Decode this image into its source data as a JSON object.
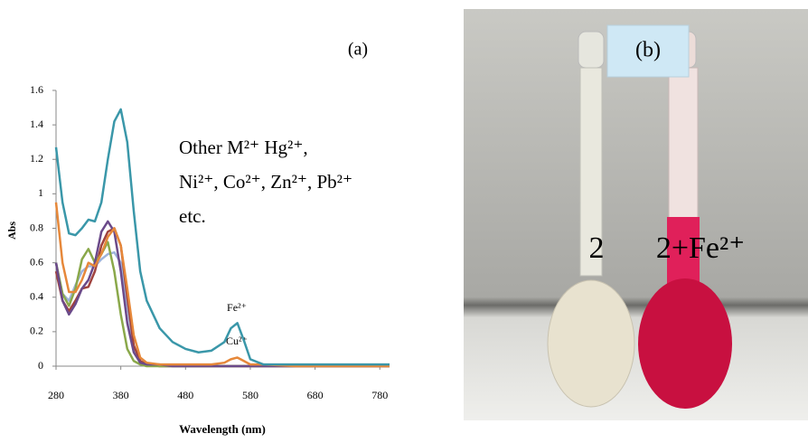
{
  "chart_data": {
    "type": "line",
    "panel_label": "(a)",
    "x_label": "Wavelength (nm)",
    "y_label": "Abs",
    "annotation_lines": [
      "Other M²⁺  Hg²⁺,",
      "Ni²⁺, Co²⁺, Zn²⁺, Pb²⁺",
      "etc."
    ],
    "peak_labels": [
      "Fe²⁺",
      "Cu²⁺"
    ],
    "x": [
      280,
      290,
      300,
      310,
      320,
      330,
      340,
      350,
      360,
      370,
      380,
      390,
      400,
      410,
      420,
      440,
      460,
      480,
      500,
      520,
      540,
      550,
      560,
      570,
      580,
      600,
      650,
      700,
      750,
      795
    ],
    "series": [
      {
        "color": "#3a97a9",
        "values": [
          1.27,
          0.95,
          0.77,
          0.76,
          0.8,
          0.85,
          0.84,
          0.95,
          1.2,
          1.42,
          1.49,
          1.3,
          0.9,
          0.55,
          0.38,
          0.22,
          0.14,
          0.1,
          0.08,
          0.09,
          0.14,
          0.22,
          0.25,
          0.15,
          0.04,
          0.01,
          0.01,
          0.01,
          0.01,
          0.01
        ]
      },
      {
        "color": "#e6883a",
        "values": [
          0.95,
          0.6,
          0.43,
          0.43,
          0.5,
          0.6,
          0.58,
          0.65,
          0.75,
          0.8,
          0.7,
          0.45,
          0.18,
          0.05,
          0.02,
          0.01,
          0.01,
          0.01,
          0.01,
          0.01,
          0.02,
          0.04,
          0.05,
          0.03,
          0.01,
          0.01,
          0,
          0,
          0,
          0
        ]
      },
      {
        "color": "#6b4a8a",
        "values": [
          0.6,
          0.38,
          0.3,
          0.36,
          0.45,
          0.5,
          0.6,
          0.78,
          0.84,
          0.78,
          0.55,
          0.25,
          0.08,
          0.02,
          0.01,
          0.01,
          0,
          0,
          0,
          0,
          0,
          0,
          0,
          0,
          0,
          0,
          0,
          0,
          0,
          0
        ]
      },
      {
        "color": "#8aa84a",
        "values": [
          0.6,
          0.42,
          0.35,
          0.45,
          0.62,
          0.68,
          0.6,
          0.65,
          0.72,
          0.55,
          0.3,
          0.1,
          0.03,
          0.01,
          0,
          0,
          0,
          0,
          0,
          0,
          0,
          0,
          0,
          0,
          0,
          0,
          0,
          0,
          0,
          0
        ]
      },
      {
        "color": "#a0433f",
        "values": [
          0.55,
          0.38,
          0.32,
          0.38,
          0.45,
          0.46,
          0.55,
          0.7,
          0.78,
          0.8,
          0.7,
          0.4,
          0.12,
          0.03,
          0.01,
          0,
          0,
          0,
          0,
          0,
          0,
          0,
          0,
          0,
          0,
          0,
          0,
          0,
          0,
          0
        ]
      },
      {
        "color": "#9fb4dc",
        "values": [
          0.6,
          0.42,
          0.38,
          0.47,
          0.55,
          0.58,
          0.58,
          0.62,
          0.65,
          0.66,
          0.6,
          0.35,
          0.1,
          0.02,
          0.01,
          0,
          0,
          0,
          0,
          0,
          0,
          0,
          0,
          0,
          0,
          0,
          0,
          0,
          0,
          0
        ]
      }
    ],
    "xlim": [
      280,
      795
    ],
    "xticks": [
      280,
      380,
      480,
      580,
      680,
      780
    ],
    "ylim": [
      0,
      1.6
    ],
    "yticks": [
      0,
      0.2,
      0.4,
      0.6,
      0.8,
      1,
      1.2,
      1.4,
      1.6
    ]
  },
  "photo": {
    "label": "(b)",
    "flask_labels": [
      "2",
      "2+Fe²⁺"
    ]
  }
}
